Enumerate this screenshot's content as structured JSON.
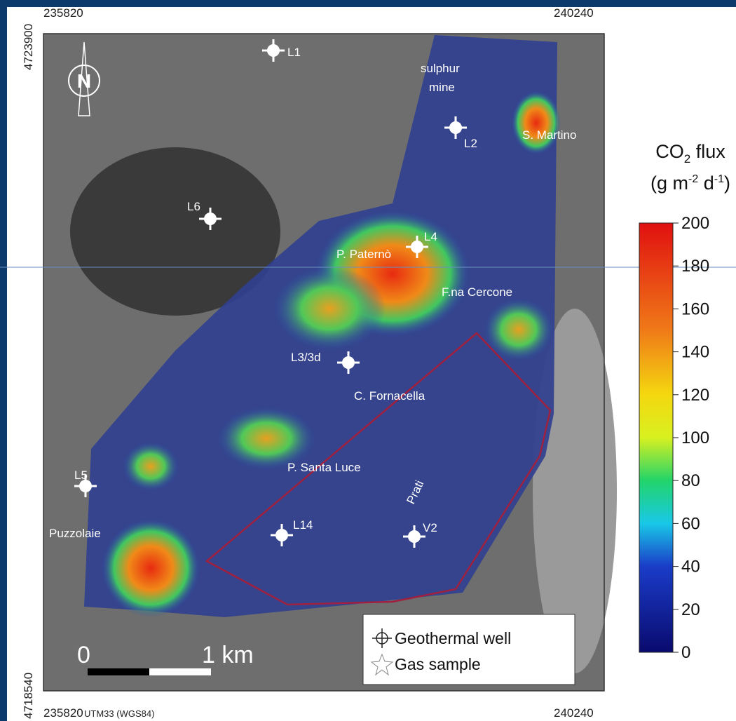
{
  "coordinates": {
    "top_left": "235820",
    "top_right": "240240",
    "left_top": "4723900",
    "left_bottom": "4718540",
    "bottom_left": "235820",
    "bottom_datum": "UTM33 (WGS84)",
    "bottom_right": "240240"
  },
  "north": "N",
  "places": [
    "L1",
    "sulphur",
    "mine",
    "L2",
    "S. Martino",
    "L6",
    "L4",
    "P. Paternò",
    "F.na Cercone",
    "L3/3d",
    "C. Fornacella",
    "P. Santa Luce",
    "L5",
    "Prati",
    "Puzzolaie",
    "L14",
    "V2"
  ],
  "colorbar": {
    "title": [
      "CO",
      "2",
      " flux"
    ],
    "units": [
      "(g m",
      "-2",
      " d",
      "-1",
      ")"
    ],
    "ticks": [
      0,
      20,
      40,
      60,
      80,
      100,
      120,
      140,
      160,
      180,
      200
    ]
  },
  "legend": [
    "Geothermal well",
    "Gas sample"
  ],
  "scale_bar": [
    "0",
    "1 km"
  ]
}
